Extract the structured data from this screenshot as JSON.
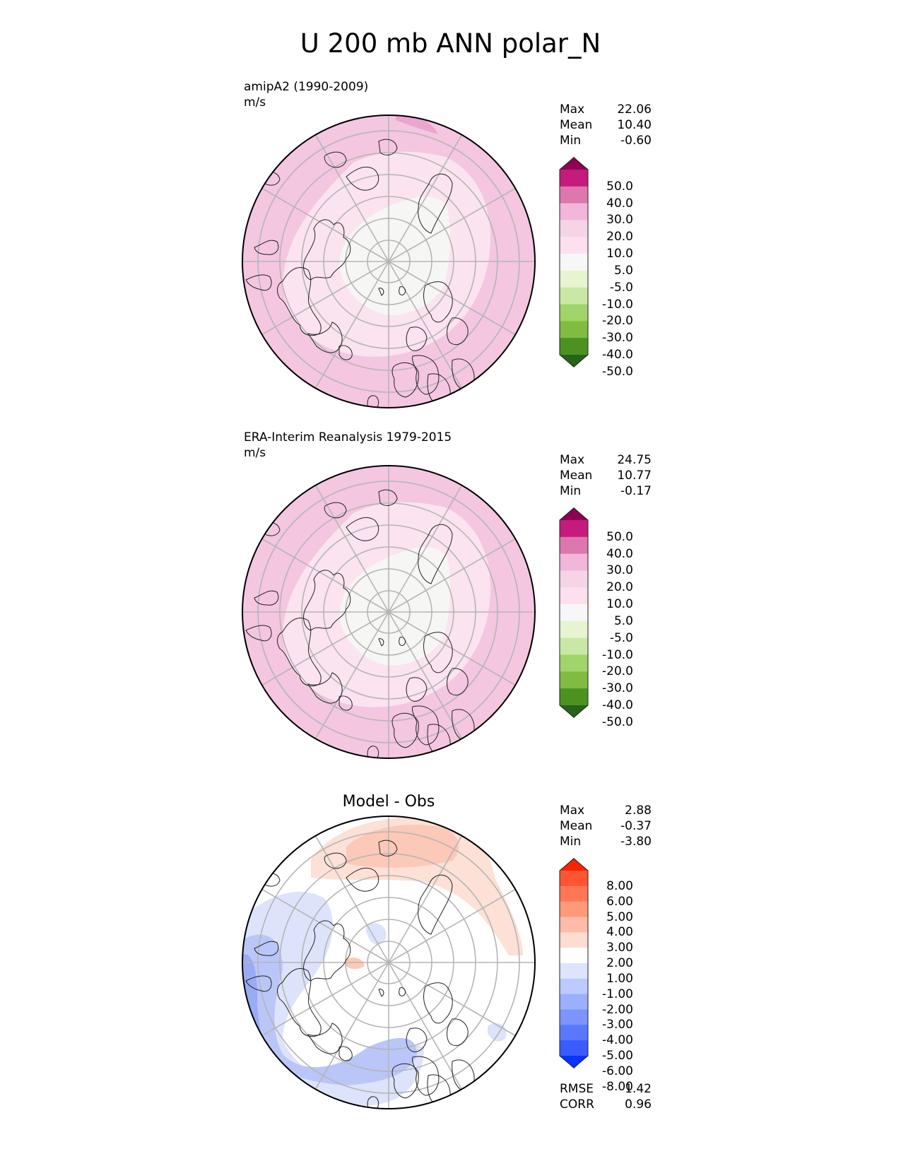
{
  "title": "U 200 mb ANN polar_N",
  "panels": [
    {
      "name": "amipA2",
      "label_line1": "amipA2 (1990-2009)",
      "label_line2": "m/s",
      "stats": [
        {
          "label": "Max",
          "value": "22.06"
        },
        {
          "label": "Mean",
          "value": "10.40"
        },
        {
          "label": "Min",
          "value": "-0.60"
        }
      ],
      "colorbar": {
        "colors": [
          "#8e0152",
          "#c51b7d",
          "#de77ae",
          "#f1b6da",
          "#f7d3e8",
          "#fde0ef",
          "#f7f7f7",
          "#e6f5d0",
          "#c9e8a5",
          "#a1d46a",
          "#7fbc41",
          "#4d9221",
          "#276419"
        ],
        "labels": [
          "50.0",
          "40.0",
          "30.0",
          "20.0",
          "10.0",
          "5.0",
          "-5.0",
          "-10.0",
          "-20.0",
          "-30.0",
          "-40.0",
          "-50.0"
        ]
      },
      "map_colors": {
        "outer": "#f4c6e0",
        "mid": "#fbe3ef",
        "inner": "#f6f6f4",
        "accent": "#eba6cf"
      }
    },
    {
      "name": "era-interim",
      "label_line1": "ERA-Interim Reanalysis 1979-2015",
      "label_line2": "m/s",
      "stats": [
        {
          "label": "Max",
          "value": "24.75"
        },
        {
          "label": "Mean",
          "value": "10.77"
        },
        {
          "label": "Min",
          "value": "-0.17"
        }
      ],
      "colorbar": {
        "colors": [
          "#8e0152",
          "#c51b7d",
          "#de77ae",
          "#f1b6da",
          "#f7d3e8",
          "#fde0ef",
          "#f7f7f7",
          "#e6f5d0",
          "#c9e8a5",
          "#a1d46a",
          "#7fbc41",
          "#4d9221",
          "#276419"
        ],
        "labels": [
          "50.0",
          "40.0",
          "30.0",
          "20.0",
          "10.0",
          "5.0",
          "-5.0",
          "-10.0",
          "-20.0",
          "-30.0",
          "-40.0",
          "-50.0"
        ]
      },
      "map_colors": {
        "outer": "#f4c6e0",
        "mid": "#fbe3ef",
        "inner": "#f6f6f4",
        "accent": "#eba6cf"
      }
    },
    {
      "name": "model-minus-obs",
      "plot_title": "Model - Obs",
      "stats": [
        {
          "label": "Max",
          "value": "2.88"
        },
        {
          "label": "Mean",
          "value": "-0.37"
        },
        {
          "label": "Min",
          "value": "-3.80"
        }
      ],
      "colorbar": {
        "colors": [
          "#ff2200",
          "#ff5533",
          "#ff7755",
          "#ff9977",
          "#ffbbaa",
          "#ffdcd2",
          "#ffffff",
          "#dce4ff",
          "#bccaff",
          "#9aafff",
          "#7b94ff",
          "#5a78ff",
          "#3a5cff",
          "#0a33ff"
        ],
        "labels": [
          "8.00",
          "6.00",
          "5.00",
          "4.00",
          "3.00",
          "2.00",
          "1.00",
          "-1.00",
          "-2.00",
          "-3.00",
          "-4.00",
          "-5.00",
          "-6.00",
          "-8.00"
        ]
      },
      "metrics": [
        {
          "label": "RMSE",
          "value": "1.42"
        },
        {
          "label": "CORR",
          "value": "0.96"
        }
      ],
      "map_colors": {
        "positive": "#fcc8b8",
        "positive_light": "#fde0d6",
        "negative": "#bac6f7",
        "negative_light": "#dde3fb",
        "negative_dark": "#99abf2"
      }
    }
  ]
}
